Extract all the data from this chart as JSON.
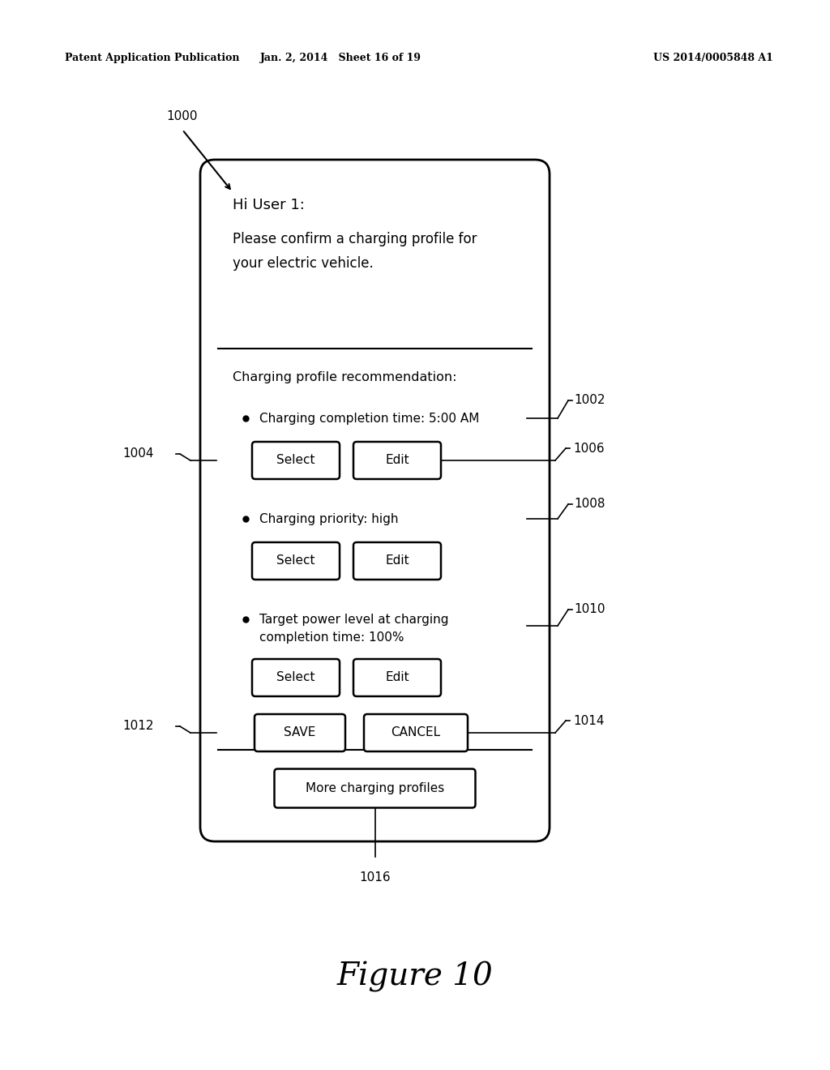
{
  "bg_color": "#ffffff",
  "header_text_left": "Patent Application Publication",
  "header_text_mid": "Jan. 2, 2014   Sheet 16 of 19",
  "header_text_right": "US 2014/0005848 A1",
  "figure_label": "Figure 10",
  "label_1000": "1000",
  "label_1002": "1002",
  "label_1004": "1004",
  "label_1006": "1006",
  "label_1008": "1008",
  "label_1010": "1010",
  "label_1012": "1012",
  "label_1014": "1014",
  "label_1016": "1016",
  "title_line1": "Hi User 1:",
  "title_line2": "Please confirm a charging profile for",
  "title_line3": "your electric vehicle.",
  "rec_label": "Charging profile recommendation:",
  "item1_text": "Charging completion time: 5:00 AM",
  "item2_text": "Charging priority: high",
  "item3_line1": "Target power level at charging",
  "item3_line2": "completion time: 100%",
  "btn_select": "Select",
  "btn_edit": "Edit",
  "btn_save": "SAVE",
  "btn_cancel": "CANCEL",
  "btn_more": "More charging profiles"
}
